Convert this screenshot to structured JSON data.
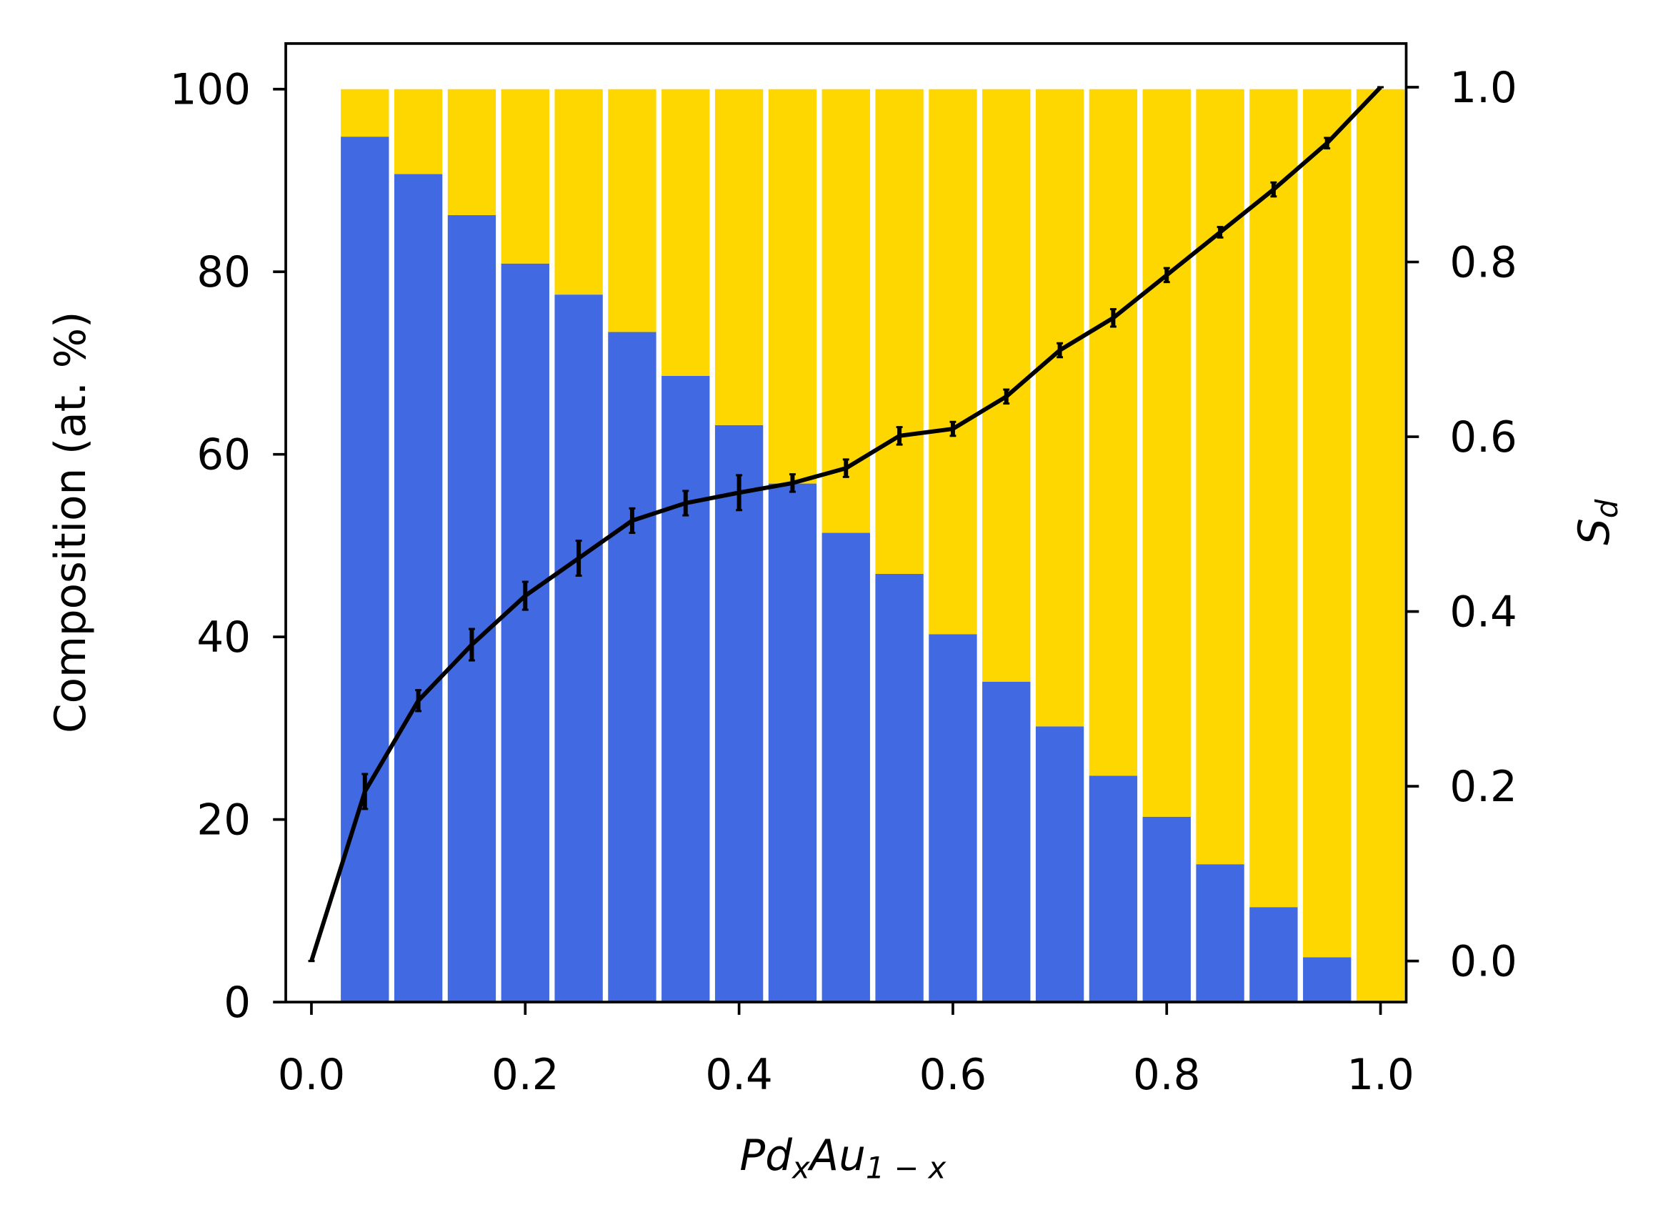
{
  "chart_data": {
    "type": "bar",
    "stacked": true,
    "y_label": "Composition (at. %)",
    "x_label": [
      "Pd",
      "x",
      "Au",
      "1 − x"
    ],
    "y2_label": [
      "S",
      "d"
    ],
    "xlim": [
      -0.024,
      1.024
    ],
    "ylim": [
      0,
      105
    ],
    "y2lim": [
      -0.047,
      1.05
    ],
    "xticks": [
      {
        "value": 0,
        "label": "0.0"
      },
      0.2,
      0.4,
      0.6,
      0.8,
      {
        "value": 1,
        "label": "1.0"
      }
    ],
    "yticks": [
      0,
      20,
      40,
      60,
      80,
      100
    ],
    "y2ticks": [
      {
        "value": 0,
        "label": "0.0"
      },
      0.2,
      0.4,
      0.6,
      0.8,
      {
        "value": 1,
        "label": "1.0"
      }
    ],
    "bar_width": 0.045,
    "x": [
      0.05,
      0.1,
      0.15,
      0.2,
      0.25,
      0.3,
      0.35,
      0.4,
      0.45,
      0.5,
      0.55,
      0.6,
      0.65,
      0.7,
      0.75,
      0.8,
      0.85,
      0.9,
      0.95,
      1.0
    ],
    "series": [
      {
        "color": "#4169e1",
        "values": [
          94.8,
          90.7,
          86.2,
          80.9,
          77.5,
          73.4,
          68.6,
          63.2,
          56.8,
          51.4,
          46.9,
          40.3,
          35.1,
          30.2,
          24.8,
          20.3,
          15.1,
          10.4,
          4.9,
          0
        ]
      },
      {
        "color": "#ffd700",
        "values": [
          5.2,
          9.3,
          13.8,
          19.1,
          22.5,
          26.6,
          31.4,
          36.8,
          43.2,
          48.6,
          53.1,
          59.7,
          64.9,
          69.8,
          75.2,
          79.7,
          84.9,
          89.6,
          95.1,
          100
        ]
      },
      {
        "type": "line",
        "axis": "y2",
        "color": "#000000",
        "x": [
          0,
          0.05,
          0.1,
          0.15,
          0.2,
          0.25,
          0.3,
          0.35,
          0.4,
          0.45,
          0.5,
          0.55,
          0.6,
          0.65,
          0.7,
          0.75,
          0.8,
          0.85,
          0.9,
          0.95,
          1.0
        ],
        "values": [
          0.0,
          0.194,
          0.298,
          0.362,
          0.418,
          0.461,
          0.504,
          0.524,
          0.536,
          0.547,
          0.564,
          0.601,
          0.609,
          0.646,
          0.699,
          0.736,
          0.785,
          0.834,
          0.883,
          0.936,
          1.0
        ],
        "errors": [
          0,
          0.02,
          0.012,
          0.018,
          0.016,
          0.02,
          0.014,
          0.014,
          0.02,
          0.01,
          0.01,
          0.01,
          0.008,
          0.008,
          0.008,
          0.01,
          0.008,
          0.006,
          0.008,
          0.006,
          0
        ]
      }
    ]
  }
}
